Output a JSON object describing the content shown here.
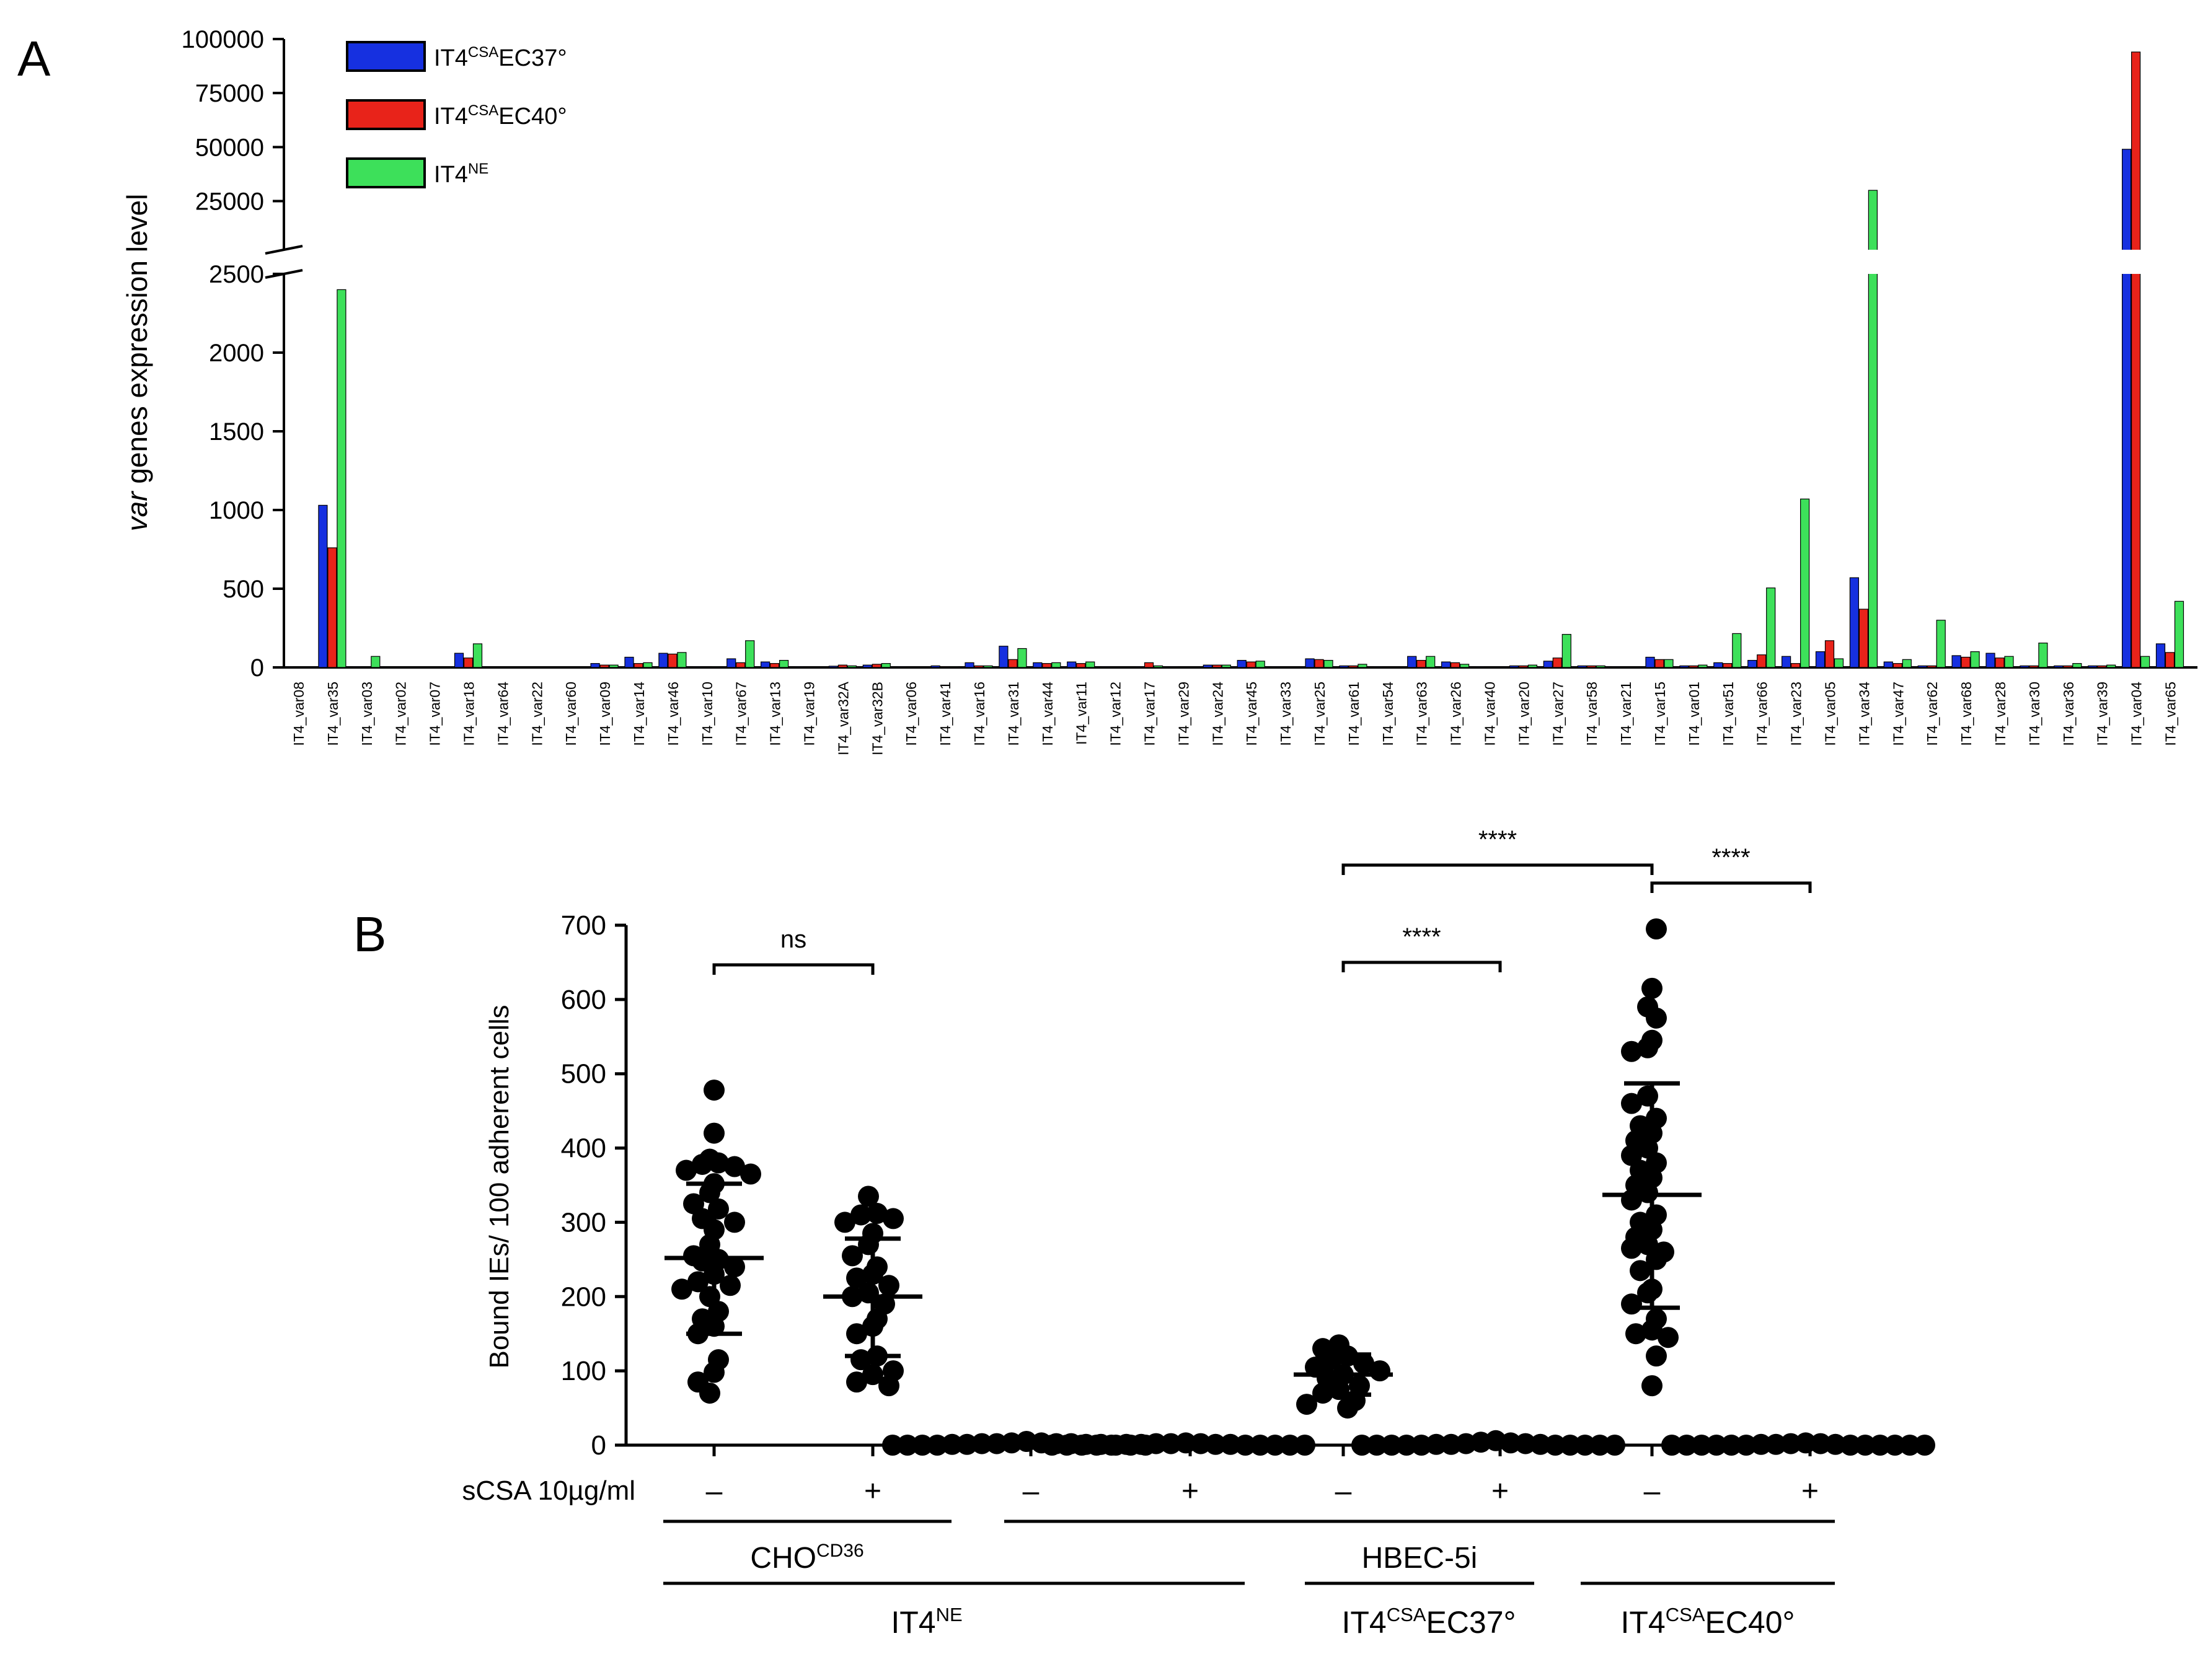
{
  "colors": {
    "ec37": "#1630E0",
    "ec40": "#E8231A",
    "ne": "#3DE05A",
    "dot": "#000000"
  },
  "panel_a": {
    "letter": "A"
  },
  "panel_b": {
    "letter": "B"
  },
  "chart_data": [
    {
      "type": "bar",
      "title": "",
      "xlabel": "",
      "ylabel_italic": "var",
      "ylabel_rest": " genes expression level",
      "broken_axis": {
        "lower": {
          "range": [
            0,
            2500
          ],
          "ticks": [
            "0",
            "500",
            "1000",
            "1500",
            "2000",
            "2500"
          ]
        },
        "upper": {
          "range": [
            2500,
            100000
          ],
          "ticks": [
            "25000",
            "50000",
            "75000",
            "100000"
          ]
        }
      },
      "legend": [
        {
          "base": "IT4",
          "sup": "CSA",
          "rest": "EC37°",
          "color_key": "ec37"
        },
        {
          "base": "IT4",
          "sup": "CSA",
          "rest": "EC40°",
          "color_key": "ec40"
        },
        {
          "base": "IT4",
          "sup": "NE",
          "rest": "",
          "color_key": "ne"
        }
      ],
      "categories": [
        "IT4_var08",
        "IT4_var35",
        "IT4_var03",
        "IT4_var02",
        "IT4_var07",
        "IT4_var18",
        "IT4_var64",
        "IT4_var22",
        "IT4_var60",
        "IT4_var09",
        "IT4_var14",
        "IT4_var46",
        "IT4_var10",
        "IT4_var67",
        "IT4_var13",
        "IT4_var19",
        "IT4_var32A",
        "IT4_var32B",
        "IT4_var06",
        "IT4_var41",
        "IT4_var16",
        "IT4_var31",
        "IT4_var44",
        "IT4_var11",
        "IT4_var12",
        "IT4_var17",
        "IT4_var29",
        "IT4_var24",
        "IT4_var45",
        "IT4_var33",
        "IT4_var25",
        "IT4_var61",
        "IT4_var54",
        "IT4_var63",
        "IT4_var26",
        "IT4_var40",
        "IT4_var20",
        "IT4_var27",
        "IT4_var58",
        "IT4_var21",
        "IT4_var15",
        "IT4_var01",
        "IT4_var51",
        "IT4_var66",
        "IT4_var23",
        "IT4_var05",
        "IT4_var34",
        "IT4_var47",
        "IT4_var62",
        "IT4_var68",
        "IT4_var28",
        "IT4_var30",
        "IT4_var36",
        "IT4_var39",
        "IT4_var04",
        "IT4_var65"
      ],
      "series": [
        {
          "name": "IT4CSAEC37°",
          "color_key": "ec37",
          "values": [
            5,
            1030,
            5,
            3,
            3,
            90,
            3,
            3,
            3,
            25,
            65,
            90,
            5,
            55,
            35,
            5,
            8,
            15,
            5,
            10,
            30,
            135,
            30,
            35,
            5,
            5,
            5,
            15,
            45,
            5,
            55,
            10,
            5,
            70,
            35,
            5,
            10,
            40,
            10,
            5,
            65,
            10,
            30,
            45,
            70,
            100,
            570,
            35,
            10,
            75,
            90,
            10,
            10,
            10,
            49000,
            150
          ]
        },
        {
          "name": "IT4CSAEC40°",
          "color_key": "ec40",
          "values": [
            3,
            760,
            3,
            2,
            2,
            60,
            2,
            2,
            2,
            15,
            25,
            85,
            3,
            30,
            25,
            3,
            15,
            20,
            3,
            5,
            10,
            50,
            25,
            25,
            3,
            30,
            3,
            15,
            35,
            3,
            50,
            10,
            3,
            45,
            30,
            3,
            10,
            60,
            10,
            3,
            50,
            10,
            25,
            80,
            25,
            170,
            370,
            25,
            10,
            65,
            60,
            10,
            10,
            10,
            94000,
            95
          ]
        },
        {
          "name": "IT4NE",
          "color_key": "ne",
          "values": [
            3,
            2400,
            70,
            3,
            3,
            150,
            3,
            3,
            3,
            15,
            30,
            95,
            5,
            170,
            45,
            3,
            10,
            25,
            3,
            5,
            10,
            120,
            30,
            35,
            3,
            10,
            3,
            15,
            40,
            3,
            45,
            20,
            3,
            70,
            20,
            3,
            15,
            210,
            10,
            3,
            50,
            15,
            215,
            505,
            1070,
            55,
            30000,
            50,
            300,
            100,
            70,
            155,
            25,
            15,
            70,
            420
          ]
        }
      ]
    },
    {
      "type": "scatter",
      "title": "",
      "ylabel": "Bound IEs/ 100 adherent cells",
      "ylim": [
        0,
        700
      ],
      "yticks": [
        "0",
        "100",
        "200",
        "300",
        "400",
        "500",
        "600",
        "700"
      ],
      "row_label": "sCSA 10µg/ml",
      "group_labels": {
        "cells": [
          {
            "base": "CHO",
            "sup": "CD36"
          },
          {
            "base": "HBEC-5i",
            "sup": ""
          }
        ],
        "parasites": [
          {
            "base": "IT4",
            "sup": "NE",
            "rest": ""
          },
          {
            "base": "IT4",
            "sup": "CSA",
            "rest": "EC37°"
          },
          {
            "base": "IT4",
            "sup": "CSA",
            "rest": "EC40°"
          }
        ]
      },
      "conditions": [
        {
          "treatment": "–",
          "mean": 252,
          "sd_low": 150,
          "sd_high": 352,
          "values": [
            478,
            420,
            385,
            380,
            378,
            375,
            370,
            365,
            352,
            340,
            325,
            318,
            305,
            300,
            290,
            270,
            255,
            250,
            248,
            240,
            230,
            220,
            215,
            210,
            200,
            180,
            170,
            160,
            150,
            115,
            98,
            85,
            70
          ]
        },
        {
          "treatment": "+",
          "mean": 200,
          "sd_low": 120,
          "sd_high": 278,
          "values": [
            335,
            312,
            310,
            305,
            300,
            285,
            270,
            255,
            240,
            230,
            225,
            215,
            205,
            200,
            190,
            170,
            160,
            150,
            120,
            115,
            100,
            95,
            85,
            80
          ]
        },
        {
          "treatment": "–",
          "mean": 0,
          "sd_low": 0,
          "sd_high": 0,
          "values": [
            5,
            3,
            3,
            2,
            2,
            2,
            2,
            1,
            1,
            1,
            1,
            0,
            0,
            0,
            0,
            0,
            0,
            0
          ]
        },
        {
          "treatment": "+",
          "mean": 0,
          "sd_low": 0,
          "sd_high": 0,
          "values": [
            3,
            2,
            2,
            2,
            1,
            1,
            1,
            1,
            0,
            0,
            0,
            0,
            0,
            0,
            0,
            0,
            0,
            0
          ]
        },
        {
          "treatment": "–",
          "mean": 95,
          "sd_low": 68,
          "sd_high": 122,
          "values": [
            135,
            130,
            120,
            115,
            110,
            105,
            100,
            95,
            90,
            80,
            75,
            70,
            60,
            55,
            50
          ]
        },
        {
          "treatment": "+",
          "mean": 0,
          "sd_low": 0,
          "sd_high": 0,
          "values": [
            6,
            4,
            3,
            2,
            2,
            1,
            1,
            1,
            0,
            0,
            0,
            0,
            0,
            0,
            0,
            0,
            0,
            0
          ]
        },
        {
          "treatment": "–",
          "mean": 337,
          "sd_low": 185,
          "sd_high": 487,
          "values": [
            695,
            615,
            590,
            575,
            545,
            535,
            530,
            470,
            460,
            440,
            430,
            420,
            410,
            400,
            390,
            380,
            370,
            360,
            350,
            340,
            330,
            310,
            300,
            290,
            280,
            270,
            265,
            260,
            250,
            235,
            210,
            205,
            190,
            170,
            155,
            150,
            145,
            120,
            80
          ]
        },
        {
          "treatment": "+",
          "mean": 0,
          "sd_low": 0,
          "sd_high": 0,
          "values": [
            3,
            2,
            2,
            1,
            1,
            1,
            0,
            0,
            0,
            0,
            0,
            0,
            0,
            0,
            0,
            0,
            0,
            0
          ]
        }
      ],
      "comparisons": [
        {
          "from": 0,
          "to": 1,
          "label": "ns"
        },
        {
          "from": 4,
          "to": 5,
          "label": "****"
        },
        {
          "from": 4,
          "to": 6,
          "label": "****"
        },
        {
          "from": 6,
          "to": 7,
          "label": "****"
        }
      ]
    }
  ]
}
